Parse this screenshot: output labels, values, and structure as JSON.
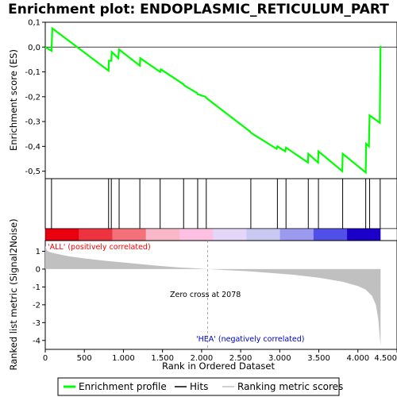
{
  "chart_data": {
    "type": "line",
    "title": "Enrichment plot: ENDOPLASMIC_RETICULUM_PART",
    "panels": {
      "enrichment": {
        "ylabel": "Enrichment score (ES)",
        "ylim": [
          -0.53,
          0.1
        ],
        "yticks": [
          "0,1",
          "0,0",
          "-0,1",
          "-0,2",
          "-0,3",
          "-0,4",
          "-0,5"
        ],
        "ytick_values": [
          0.1,
          0.0,
          -0.1,
          -0.2,
          -0.3,
          -0.4,
          -0.5
        ],
        "series": [
          {
            "name": "Enrichment profile",
            "color": "#00ff00",
            "x": [
              0,
              80,
              90,
              810,
              815,
              845,
              850,
              935,
              945,
              1210,
              1215,
              1470,
              1480,
              1770,
              1780,
              1940,
              1950,
              2050,
              2060,
              2620,
              2630,
              2960,
              2970,
              3070,
              3080,
              3360,
              3365,
              3490,
              3495,
              3800,
              3805,
              4100,
              4105,
              4140,
              4150,
              4280,
              4290
            ],
            "y": [
              0.0,
              -0.015,
              0.075,
              -0.095,
              -0.055,
              -0.055,
              -0.02,
              -0.045,
              -0.01,
              -0.075,
              -0.045,
              -0.1,
              -0.09,
              -0.15,
              -0.155,
              -0.185,
              -0.19,
              -0.2,
              -0.205,
              -0.34,
              -0.345,
              -0.41,
              -0.4,
              -0.42,
              -0.405,
              -0.465,
              -0.43,
              -0.465,
              -0.42,
              -0.5,
              -0.43,
              -0.505,
              -0.39,
              -0.4,
              -0.275,
              -0.305,
              0.005
            ]
          }
        ]
      },
      "hits": {
        "positions": [
          80,
          810,
          845,
          945,
          1210,
          1470,
          1770,
          1950,
          2060,
          2630,
          2970,
          3080,
          3365,
          3495,
          3805,
          4100,
          4150,
          4285
        ]
      },
      "ranked_metric": {
        "ylabel": "Ranked list metric (Signal2Noise)",
        "ylim": [
          -4.5,
          1.6
        ],
        "yticks": [
          "1",
          "0",
          "-1",
          "-2",
          "-3",
          "-4"
        ],
        "ytick_values": [
          1,
          0,
          -1,
          -2,
          -3,
          -4
        ],
        "x": [
          0,
          20,
          60,
          150,
          300,
          500,
          800,
          1100,
          1400,
          1700,
          1900,
          2078,
          2300,
          2600,
          2900,
          3200,
          3500,
          3800,
          4000,
          4100,
          4180,
          4230,
          4260,
          4280,
          4290
        ],
        "y": [
          1.3,
          1.05,
          0.95,
          0.85,
          0.72,
          0.6,
          0.45,
          0.33,
          0.2,
          0.1,
          0.05,
          0.0,
          -0.05,
          -0.12,
          -0.22,
          -0.33,
          -0.48,
          -0.7,
          -0.95,
          -1.15,
          -1.5,
          -2.0,
          -2.8,
          -3.8,
          -4.3
        ],
        "color": "#c0c0c0"
      }
    },
    "xlabel": "Rank in Ordered Dataset",
    "xlim": [
      0,
      4500
    ],
    "xticks": [
      "0",
      "500",
      "1.000",
      "1.500",
      "2.000",
      "2.500",
      "3.000",
      "3.500",
      "4.000",
      "4.500"
    ],
    "xtick_values": [
      0,
      500,
      1000,
      1500,
      2000,
      2500,
      3000,
      3500,
      4000,
      4500
    ],
    "annotations": {
      "positive": "'ALL' (positively correlated)",
      "negative": "'HEA' (negatively correlated)",
      "zero_cross": "Zero cross at 2078",
      "zero_cross_value": 2078,
      "positive_color": "#ff0000",
      "negative_color": "#0000ff"
    },
    "heatbar_colors": [
      "#e8000f",
      "#ee3340",
      "#f4717a",
      "#f8b8c8",
      "#fec0e2",
      "#e4d6f6",
      "#c8c8f0",
      "#9a9aee",
      "#5050e8",
      "#1a00c8"
    ],
    "legend": {
      "placement": "bottom",
      "items": [
        {
          "label": "Enrichment profile",
          "color": "#00ff00",
          "kind": "thick-line"
        },
        {
          "label": "Hits",
          "color": "#000000",
          "kind": "line"
        },
        {
          "label": "Ranking metric scores",
          "color": "#c0c0c0",
          "kind": "line"
        }
      ]
    }
  }
}
